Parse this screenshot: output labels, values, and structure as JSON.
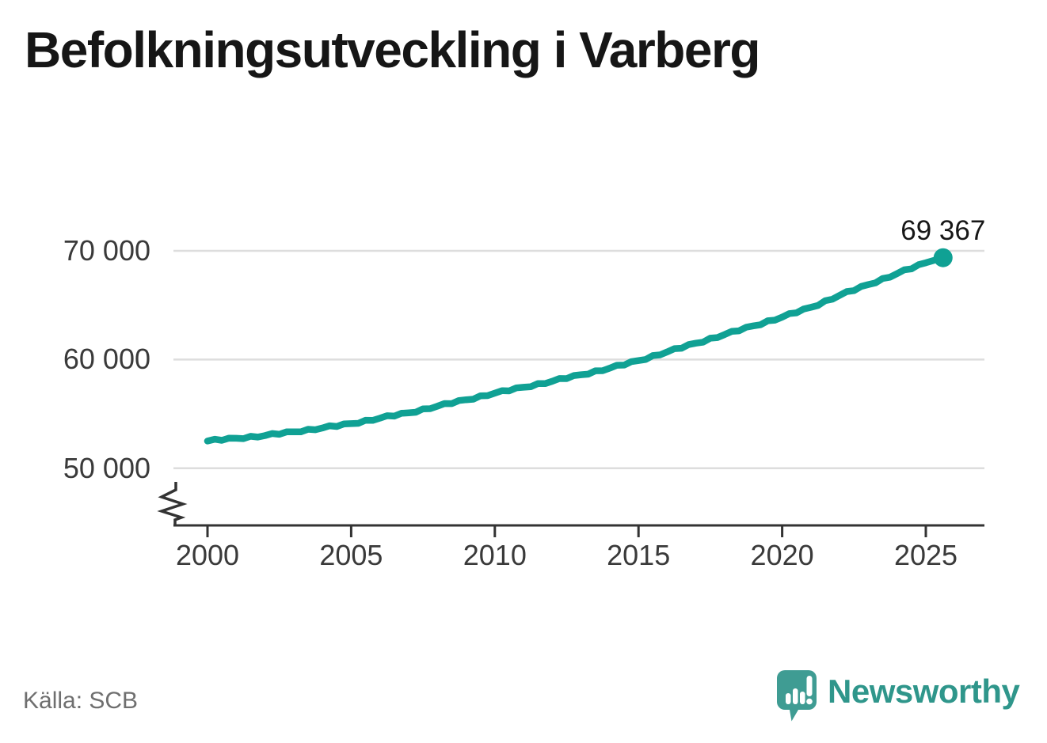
{
  "title": "Befolkningsutveckling i Varberg",
  "source": "Källa: SCB",
  "branding": {
    "wordmark": "Newsworthy"
  },
  "colors": {
    "line": "#10a194",
    "grid": "#dddddd",
    "axis": "#333333",
    "tick_label": "#3a3a3a",
    "title": "#161616",
    "source_text": "#6f6f6f",
    "logo": "#3f9c93",
    "logo_text": "#2f968b"
  },
  "chart_data": {
    "type": "line",
    "title": "Befolkningsutveckling i Varberg",
    "xlabel": "",
    "ylabel": "",
    "grid": "horizontal",
    "axis_break": true,
    "legend": "none",
    "x": [
      2000,
      2001,
      2002,
      2003,
      2004,
      2005,
      2006,
      2007,
      2008,
      2009,
      2010,
      2011,
      2012,
      2013,
      2014,
      2015,
      2016,
      2017,
      2018,
      2019,
      2020,
      2021,
      2022,
      2023,
      2024,
      2025
    ],
    "y": [
      52500,
      52750,
      53000,
      53350,
      53700,
      54100,
      54600,
      55100,
      55700,
      56300,
      56900,
      57450,
      58000,
      58600,
      59200,
      59900,
      60700,
      61500,
      62300,
      63100,
      63900,
      64800,
      65900,
      66900,
      67900,
      68900
    ],
    "latest": {
      "x": 2025.6,
      "value": 69367,
      "label": "69 367"
    },
    "x_ticks": [
      {
        "year": 2000,
        "label": "2000"
      },
      {
        "year": 2005,
        "label": "2005"
      },
      {
        "year": 2010,
        "label": "2010"
      },
      {
        "year": 2015,
        "label": "2015"
      },
      {
        "year": 2020,
        "label": "2020"
      },
      {
        "year": 2025,
        "label": "2025"
      }
    ],
    "y_ticks": [
      {
        "value": 70000,
        "label": "70 000"
      },
      {
        "value": 60000,
        "label": "60 000"
      },
      {
        "value": 50000,
        "label": "50 000"
      }
    ],
    "xlim": [
      1999.4,
      2027
    ],
    "ylim_display": [
      46500,
      71800
    ]
  }
}
